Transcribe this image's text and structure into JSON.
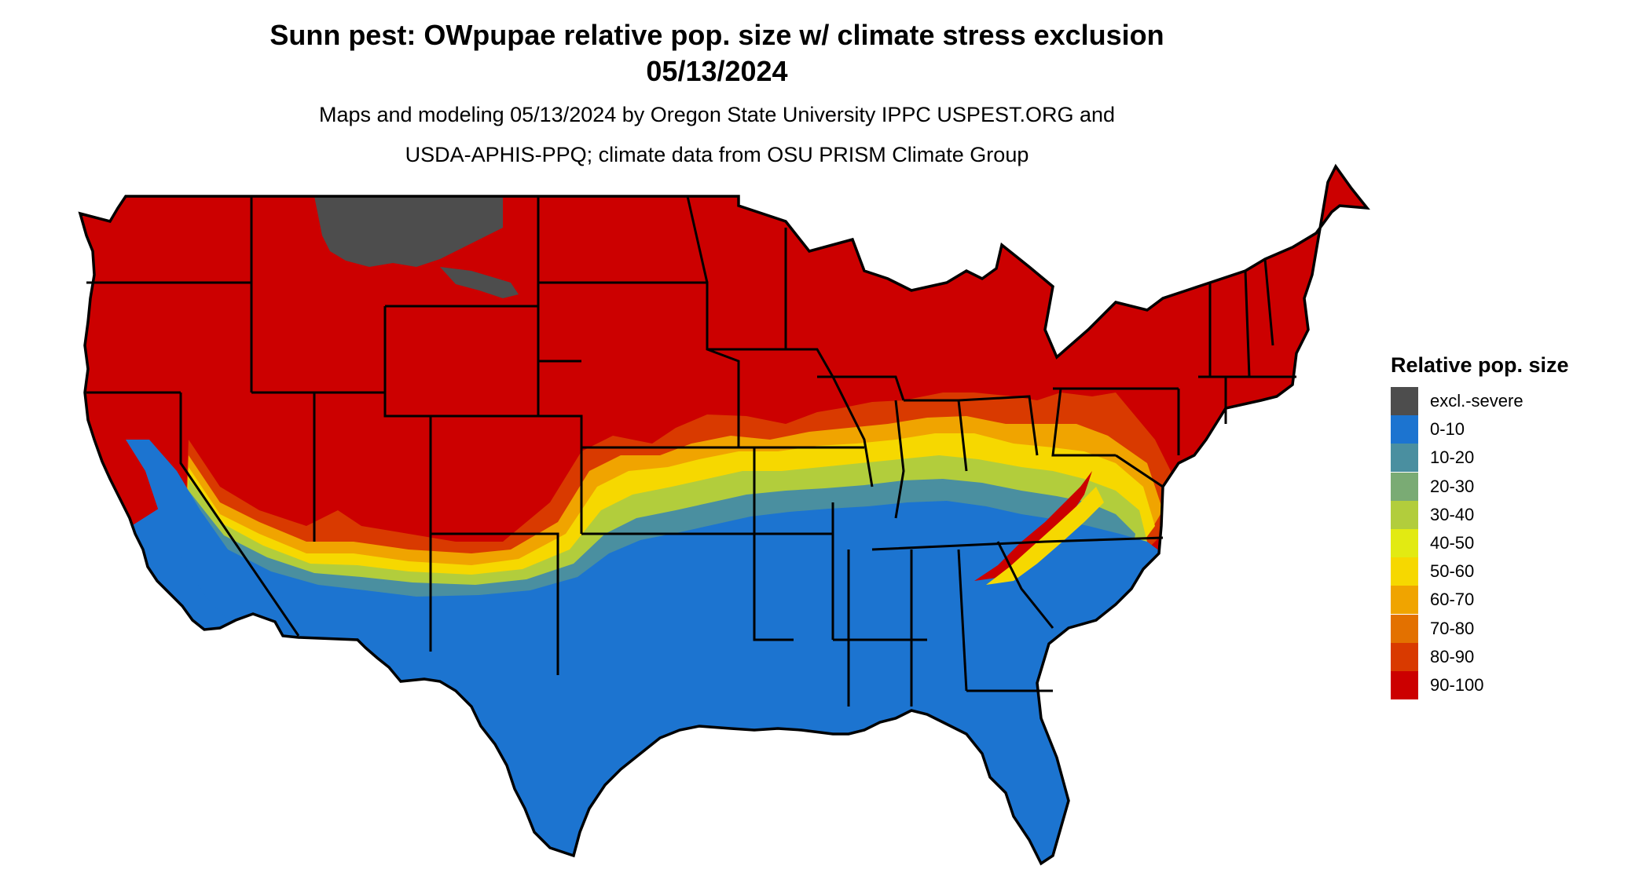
{
  "title": {
    "line1": "Sunn pest: OWpupae relative pop. size w/ climate stress exclusion",
    "line2": "05/13/2024"
  },
  "subtitle": {
    "line1": "Maps and modeling 05/13/2024 by Oregon State University IPPC USPEST.ORG and",
    "line2": "USDA-APHIS-PPQ; climate data from OSU PRISM Climate Group"
  },
  "legend": {
    "title": "Relative pop. size",
    "items": [
      {
        "label": "excl.-severe",
        "color": "#4d4d4d"
      },
      {
        "label": "0-10",
        "color": "#1c74d0"
      },
      {
        "label": "10-20",
        "color": "#4a8fa0"
      },
      {
        "label": "20-30",
        "color": "#7aab74"
      },
      {
        "label": "30-40",
        "color": "#b2cd3c"
      },
      {
        "label": "40-50",
        "color": "#e2ea12"
      },
      {
        "label": "50-60",
        "color": "#f6d800"
      },
      {
        "label": "60-70",
        "color": "#f0a400"
      },
      {
        "label": "70-80",
        "color": "#e37100"
      },
      {
        "label": "80-90",
        "color": "#d93a00"
      },
      {
        "label": "90-100",
        "color": "#cc0000"
      }
    ]
  },
  "colors": {
    "excluded": "#4d4d4d",
    "low": "#1c74d0",
    "high": "#cc0000",
    "border": "#000000"
  }
}
